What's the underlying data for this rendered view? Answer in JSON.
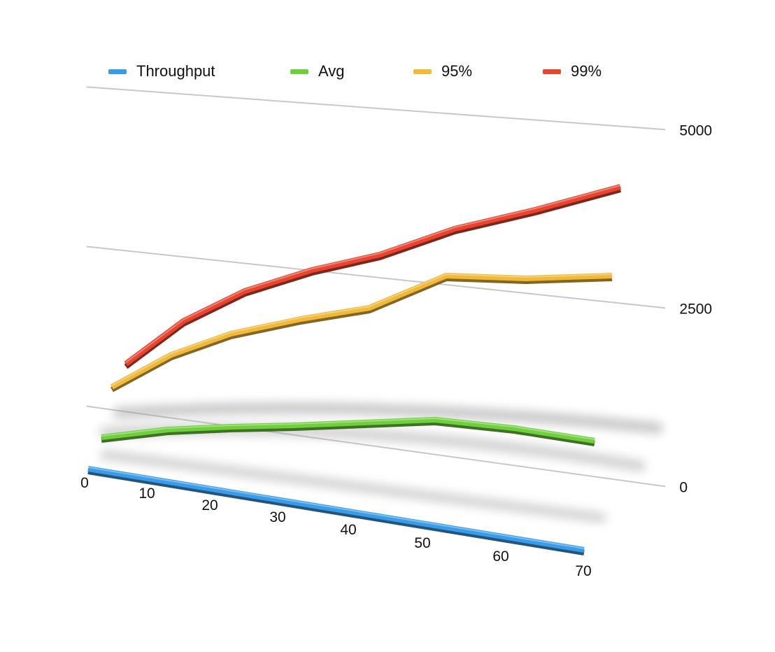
{
  "colors": {
    "throughput": "#3a9be8",
    "avg": "#6fcf3d",
    "p95": "#f0b93a",
    "p99": "#e8442f",
    "grid": "#c8c8c8",
    "shadow": "#9a9a9a"
  },
  "legend": [
    {
      "name": "Throughput",
      "color": "#3a9be8"
    },
    {
      "name": "Avg",
      "color": "#6fcf3d"
    },
    {
      "name": "95%",
      "color": "#f0b93a"
    },
    {
      "name": "99%",
      "color": "#e8442f"
    }
  ],
  "chart_data": {
    "type": "line",
    "title": "",
    "xlabel": "",
    "ylabel": "",
    "perspective": "3d",
    "legend_position": "top",
    "grid": true,
    "xlim": [
      0,
      70
    ],
    "ylim": [
      0,
      10000
    ],
    "x_ticks": [
      "0",
      "10",
      "20",
      "30",
      "40",
      "50",
      "60",
      "70"
    ],
    "y_ticks": [
      "0",
      "2500",
      "5000",
      "7500",
      "10000"
    ],
    "series": [
      {
        "name": "Throughput",
        "x": [
          0,
          70
        ],
        "y": [
          0,
          0
        ]
      },
      {
        "name": "Avg",
        "x": [
          0,
          10,
          20,
          30,
          40,
          50,
          60,
          70
        ],
        "y": [
          1800,
          1900,
          1950,
          2000,
          2100,
          2200,
          2000,
          1700
        ]
      },
      {
        "name": "95%",
        "x": [
          0,
          10,
          20,
          30,
          40,
          50,
          60,
          70
        ],
        "y": [
          3600,
          4500,
          5100,
          5500,
          5800,
          6800,
          6700,
          6700
        ]
      },
      {
        "name": "99%",
        "x": [
          0,
          10,
          20,
          30,
          40,
          50,
          60,
          70
        ],
        "y": [
          4200,
          5600,
          6400,
          7000,
          7400,
          8100,
          8600,
          9300
        ]
      }
    ]
  }
}
